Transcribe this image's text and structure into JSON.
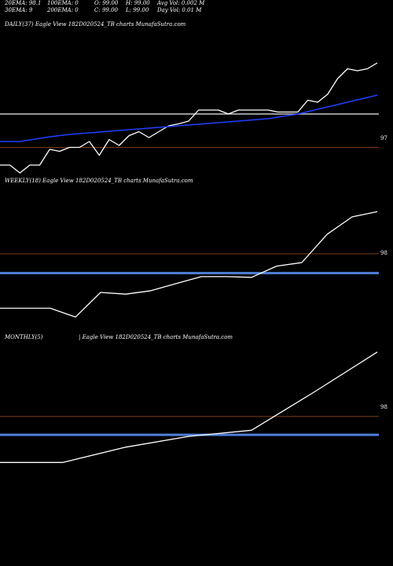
{
  "colors": {
    "background": "#000000",
    "price_line": "#ffffff",
    "ema_line": "#1f3fff",
    "level_line": "#7a3c12",
    "ref_line": "#c8c8c8",
    "band_line": "#4f7fd8"
  },
  "stats": {
    "ema20": "20EMA: 98.1",
    "ema30": "30EMA: 9",
    "ema100": "100EMA: 0",
    "ema200": "200EMA: 0",
    "open": "O: 99.00",
    "close": "C: 99.00",
    "high": "H: 99.00",
    "low": "L: 99.00",
    "avg_vol": "Avg Vol: 0.002  M",
    "day_vol": "Day Vol: 0.01 M"
  },
  "chart_data": [
    {
      "type": "line",
      "title": "DAILY(37) Eagle  View  182D020524_TB charts MunafaSutra.com",
      "tick_label": "97",
      "series": [
        {
          "values": [
            96.4,
            96.4,
            96.2,
            96.4,
            96.4,
            96.8,
            96.75,
            96.85,
            96.85,
            97.0,
            96.65,
            97.05,
            96.9,
            97.15,
            97.25,
            97.1,
            97.25,
            97.4,
            97.45,
            97.52,
            97.8,
            97.8,
            97.8,
            97.7,
            97.8,
            97.8,
            97.8,
            97.8,
            97.75,
            97.75,
            97.75,
            98.05,
            98.0,
            98.2,
            98.6,
            98.85,
            98.8,
            98.85,
            99.0
          ]
        },
        {
          "values": [
            97.0,
            97.0,
            97.0,
            97.04,
            97.08,
            97.12,
            97.15,
            97.18,
            97.2,
            97.22,
            97.24,
            97.26,
            97.28,
            97.3,
            97.32,
            97.34,
            97.36,
            97.38,
            97.4,
            97.42,
            97.44,
            97.46,
            97.48,
            97.5,
            97.52,
            97.54,
            97.56,
            97.58,
            97.62,
            97.66,
            97.7,
            97.76,
            97.82,
            97.88,
            97.94,
            98.0,
            98.06,
            98.12,
            98.18
          ]
        }
      ],
      "ref_level": 97.7,
      "level": 96.85
    },
    {
      "type": "line",
      "title": "WEEKLY(18) Eagle  View  182D020524_TB charts MunafaSutra.com",
      "tick_label": "98",
      "series": [
        {
          "values": [
            96.4,
            96.4,
            96.4,
            96.15,
            96.85,
            96.8,
            96.9,
            97.1,
            97.3,
            97.3,
            97.28,
            97.6,
            97.7,
            98.5,
            99.0,
            99.15
          ]
        }
      ],
      "band_level": 97.4,
      "level": 97.95
    },
    {
      "type": "line",
      "title": "MONTHLY(5)",
      "subtitle": "| Eagle  View  182D020524_TB charts MunafaSutra.com",
      "tick_label": "98",
      "series": [
        {
          "values": [
            96.3,
            96.3,
            96.8,
            97.15,
            97.35,
            98.6,
            99.9
          ]
        }
      ],
      "band_level": 97.2,
      "level": 97.8
    }
  ]
}
